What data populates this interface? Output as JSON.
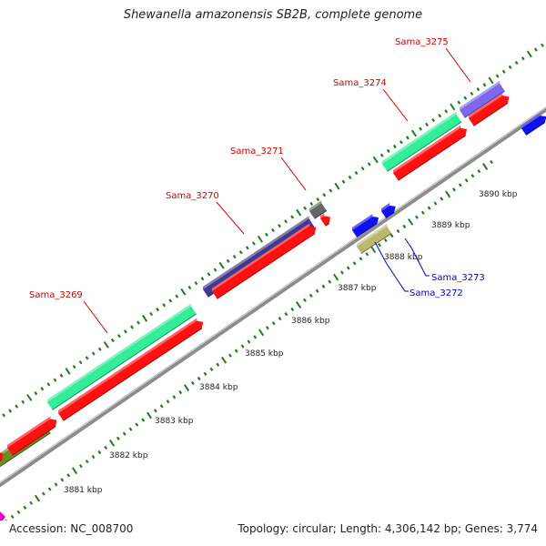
{
  "header": {
    "title": "Shewanella amazonensis SB2B, complete genome"
  },
  "footer": {
    "accession": "Accession: NC_008700",
    "stats": "Topology: circular; Length: 4,306,142 bp; Genes: 3,774"
  },
  "colors": {
    "backbone": "#8c8c8c",
    "tick": "#1a7f1a",
    "forward_label": "#cc0000",
    "reverse_label": "#0000cc",
    "scale_label": "#222222"
  },
  "scale": {
    "unit": "kbp",
    "ticks": [
      {
        "label": "3881 kbp"
      },
      {
        "label": "3882 kbp"
      },
      {
        "label": "3883 kbp"
      },
      {
        "label": "3884 kbp"
      },
      {
        "label": "3885 kbp"
      },
      {
        "label": "3886 kbp"
      },
      {
        "label": "3887 kbp"
      },
      {
        "label": "3888 kbp"
      },
      {
        "label": "3889 kbp"
      },
      {
        "label": "3890 kbp"
      }
    ]
  },
  "gene_labels": {
    "forward": [
      "Sama_3269",
      "Sama_3270",
      "Sama_3271",
      "Sama_3274",
      "Sama_3275"
    ],
    "reverse": [
      "Sama_3272",
      "Sama_3273"
    ]
  },
  "features": {
    "forward_outer": [
      {
        "name": "",
        "color": "#6b8e23"
      },
      {
        "name": "Sama_3269",
        "color": "#33ee99"
      },
      {
        "name": "Sama_3270",
        "color": "#3e3a8f"
      },
      {
        "name": "Sama_3271",
        "color": "#666666"
      },
      {
        "name": "Sama_3274",
        "color": "#33ee99"
      },
      {
        "name": "Sama_3275",
        "color": "#7b68ee"
      }
    ],
    "forward_inner_color": "#ff1111",
    "reverse_colors": {
      "gene": "#1010ee",
      "other": "#bdb76b"
    }
  }
}
